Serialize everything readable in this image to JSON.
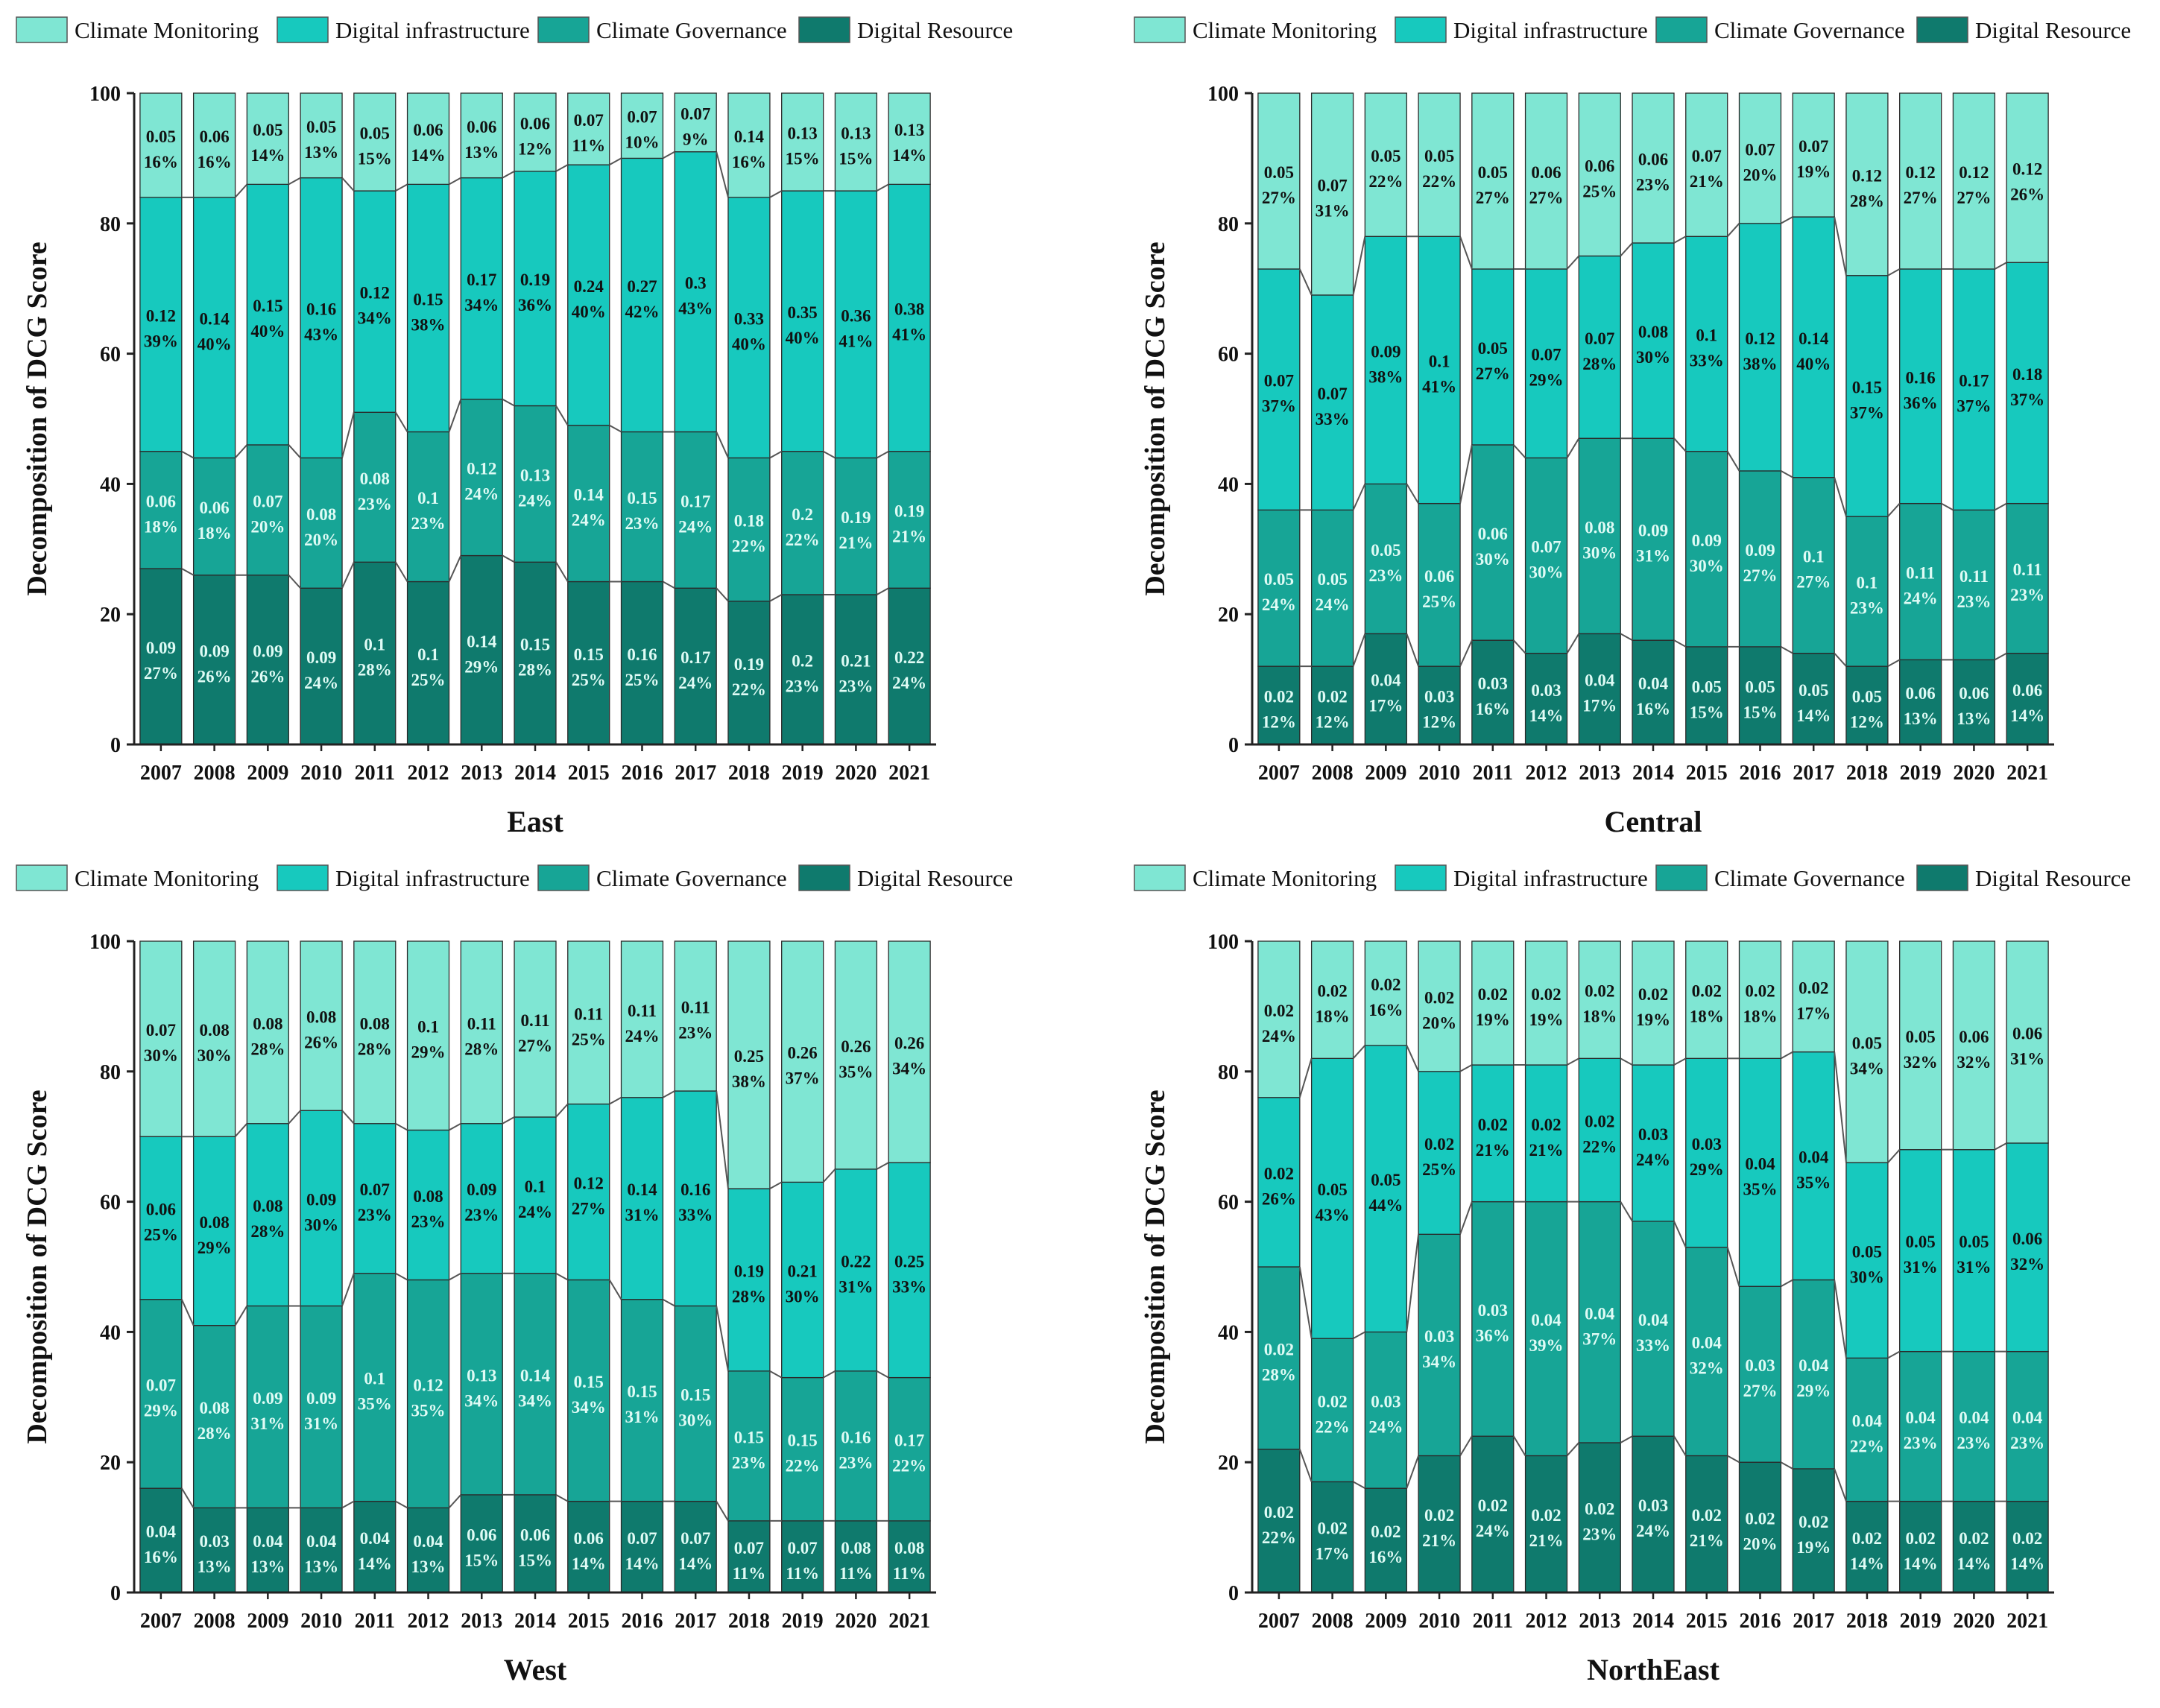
{
  "colors": {
    "climate_monitoring": "#7fe6d3",
    "digital_infrastructure": "#17c9be",
    "climate_governance": "#17a596",
    "digital_resource": "#0f7a6d",
    "axis": "#222222",
    "label_dark": "#111111",
    "label_light": "#dffbf5"
  },
  "chart_data": [
    {
      "type": "bar",
      "title": "East",
      "ylabel": "Decomposition of DCG Score",
      "ylim": [
        0,
        100
      ],
      "yticks": [
        0,
        20,
        40,
        60,
        80,
        100
      ],
      "categories": [
        "2007",
        "2008",
        "2009",
        "2010",
        "2011",
        "2012",
        "2013",
        "2014",
        "2015",
        "2016",
        "2017",
        "2018",
        "2019",
        "2020",
        "2021"
      ],
      "legend": [
        "Climate Monitoring",
        "Digital infrastructure",
        "Climate Governance",
        "Digital Resource"
      ],
      "series": [
        {
          "name": "Digital Resource",
          "pct": [
            27,
            26,
            26,
            24,
            28,
            25,
            29,
            28,
            25,
            25,
            24,
            22,
            23,
            23,
            24
          ],
          "scores": [
            "0.09",
            "0.09",
            "0.09",
            "0.09",
            "0.1",
            "0.1",
            "0.14",
            "0.15",
            "0.15",
            "0.16",
            "0.17",
            "0.19",
            "0.2",
            "0.21",
            "0.22"
          ]
        },
        {
          "name": "Climate Governance",
          "pct": [
            18,
            18,
            20,
            20,
            23,
            23,
            24,
            24,
            24,
            23,
            24,
            22,
            22,
            21,
            21
          ],
          "scores": [
            "0.06",
            "0.06",
            "0.07",
            "0.08",
            "0.08",
            "0.1",
            "0.12",
            "0.13",
            "0.14",
            "0.15",
            "0.17",
            "0.18",
            "0.2",
            "0.19",
            "0.19"
          ]
        },
        {
          "name": "Digital infrastructure",
          "pct": [
            39,
            40,
            40,
            43,
            34,
            38,
            34,
            36,
            40,
            42,
            43,
            40,
            40,
            41,
            41
          ],
          "scores": [
            "0.12",
            "0.14",
            "0.15",
            "0.16",
            "0.12",
            "0.15",
            "0.17",
            "0.19",
            "0.24",
            "0.27",
            "0.3",
            "0.33",
            "0.35",
            "0.36",
            "0.38"
          ]
        },
        {
          "name": "Climate Monitoring",
          "pct": [
            16,
            16,
            14,
            13,
            15,
            14,
            13,
            12,
            11,
            10,
            9,
            16,
            15,
            15,
            14
          ],
          "scores": [
            "0.05",
            "0.06",
            "0.05",
            "0.05",
            "0.05",
            "0.06",
            "0.06",
            "0.06",
            "0.07",
            "0.07",
            "0.07",
            "0.14",
            "0.13",
            "0.13",
            "0.13"
          ]
        }
      ]
    },
    {
      "type": "bar",
      "title": "Central",
      "ylabel": "Decomposition of DCG Score",
      "ylim": [
        0,
        100
      ],
      "yticks": [
        0,
        20,
        40,
        60,
        80,
        100
      ],
      "categories": [
        "2007",
        "2008",
        "2009",
        "2010",
        "2011",
        "2012",
        "2013",
        "2014",
        "2015",
        "2016",
        "2017",
        "2018",
        "2019",
        "2020",
        "2021"
      ],
      "legend": [
        "Climate Monitoring",
        "Digital infrastructure",
        "Climate Governance",
        "Digital Resource"
      ],
      "series": [
        {
          "name": "Digital Resource",
          "pct": [
            12,
            12,
            17,
            12,
            16,
            14,
            17,
            16,
            15,
            15,
            14,
            12,
            13,
            13,
            14
          ],
          "scores": [
            "0.02",
            "0.02",
            "0.04",
            "0.03",
            "0.03",
            "0.03",
            "0.04",
            "0.04",
            "0.05",
            "0.05",
            "0.05",
            "0.05",
            "0.06",
            "0.06",
            "0.06"
          ]
        },
        {
          "name": "Climate Governance",
          "pct": [
            24,
            24,
            23,
            25,
            30,
            30,
            30,
            31,
            30,
            27,
            27,
            23,
            24,
            23,
            23
          ],
          "scores": [
            "0.05",
            "0.05",
            "0.05",
            "0.06",
            "0.06",
            "0.07",
            "0.08",
            "0.09",
            "0.09",
            "0.09",
            "0.1",
            "0.1",
            "0.11",
            "0.11",
            "0.11"
          ]
        },
        {
          "name": "Digital infrastructure",
          "pct": [
            37,
            33,
            38,
            41,
            27,
            29,
            28,
            30,
            33,
            38,
            40,
            37,
            36,
            37,
            37
          ],
          "scores": [
            "0.07",
            "0.07",
            "0.09",
            "0.1",
            "0.05",
            "0.07",
            "0.07",
            "0.08",
            "0.1",
            "0.12",
            "0.14",
            "0.15",
            "0.16",
            "0.17",
            "0.18"
          ]
        },
        {
          "name": "Climate Monitoring",
          "pct": [
            27,
            31,
            22,
            22,
            27,
            27,
            25,
            23,
            21,
            20,
            19,
            28,
            27,
            27,
            26
          ],
          "scores": [
            "0.05",
            "0.07",
            "0.05",
            "0.05",
            "0.05",
            "0.06",
            "0.06",
            "0.06",
            "0.07",
            "0.07",
            "0.07",
            "0.12",
            "0.12",
            "0.12",
            "0.12"
          ]
        }
      ]
    },
    {
      "type": "bar",
      "title": "West",
      "ylabel": "Decomposition of DCG Score",
      "ylim": [
        0,
        100
      ],
      "yticks": [
        0,
        20,
        40,
        60,
        80,
        100
      ],
      "categories": [
        "2007",
        "2008",
        "2009",
        "2010",
        "2011",
        "2012",
        "2013",
        "2014",
        "2015",
        "2016",
        "2017",
        "2018",
        "2019",
        "2020",
        "2021"
      ],
      "legend": [
        "Climate Monitoring",
        "Digital infrastructure",
        "Climate Governance",
        "Digital Resource"
      ],
      "series": [
        {
          "name": "Digital Resource",
          "pct": [
            16,
            13,
            13,
            13,
            14,
            13,
            15,
            15,
            14,
            14,
            14,
            11,
            11,
            11,
            11
          ],
          "scores": [
            "0.04",
            "0.03",
            "0.04",
            "0.04",
            "0.04",
            "0.04",
            "0.06",
            "0.06",
            "0.06",
            "0.07",
            "0.07",
            "0.07",
            "0.07",
            "0.08",
            "0.08"
          ]
        },
        {
          "name": "Climate Governance",
          "pct": [
            29,
            28,
            31,
            31,
            35,
            35,
            34,
            34,
            34,
            31,
            30,
            23,
            22,
            23,
            22
          ],
          "scores": [
            "0.07",
            "0.08",
            "0.09",
            "0.09",
            "0.1",
            "0.12",
            "0.13",
            "0.14",
            "0.15",
            "0.15",
            "0.15",
            "0.15",
            "0.15",
            "0.16",
            "0.17"
          ]
        },
        {
          "name": "Digital infrastructure",
          "pct": [
            25,
            29,
            28,
            30,
            23,
            23,
            23,
            24,
            27,
            31,
            33,
            28,
            30,
            31,
            33
          ],
          "scores": [
            "0.06",
            "0.08",
            "0.08",
            "0.09",
            "0.07",
            "0.08",
            "0.09",
            "0.1",
            "0.12",
            "0.14",
            "0.16",
            "0.19",
            "0.21",
            "0.22",
            "0.25"
          ]
        },
        {
          "name": "Climate Monitoring",
          "pct": [
            30,
            30,
            28,
            26,
            28,
            29,
            28,
            27,
            25,
            24,
            23,
            38,
            37,
            35,
            34
          ],
          "scores": [
            "0.07",
            "0.08",
            "0.08",
            "0.08",
            "0.08",
            "0.1",
            "0.11",
            "0.11",
            "0.11",
            "0.11",
            "0.11",
            "0.25",
            "0.26",
            "0.26",
            "0.26"
          ]
        }
      ]
    },
    {
      "type": "bar",
      "title": "NorthEast",
      "ylabel": "Decomposition of DCG Score",
      "ylim": [
        0,
        100
      ],
      "yticks": [
        0,
        20,
        40,
        60,
        80,
        100
      ],
      "categories": [
        "2007",
        "2008",
        "2009",
        "2010",
        "2011",
        "2012",
        "2013",
        "2014",
        "2015",
        "2016",
        "2017",
        "2018",
        "2019",
        "2020",
        "2021"
      ],
      "legend": [
        "Climate Monitoring",
        "Digital infrastructure",
        "Climate Governance",
        "Digital Resource"
      ],
      "series": [
        {
          "name": "Digital Resource",
          "pct": [
            22,
            17,
            16,
            21,
            24,
            21,
            23,
            24,
            21,
            20,
            19,
            14,
            14,
            14,
            14
          ],
          "scores": [
            "0.02",
            "0.02",
            "0.02",
            "0.02",
            "0.02",
            "0.02",
            "0.02",
            "0.03",
            "0.02",
            "0.02",
            "0.02",
            "0.02",
            "0.02",
            "0.02",
            "0.02"
          ]
        },
        {
          "name": "Climate Governance",
          "pct": [
            28,
            22,
            24,
            34,
            36,
            39,
            37,
            33,
            32,
            27,
            29,
            22,
            23,
            23,
            23
          ],
          "scores": [
            "0.02",
            "0.02",
            "0.03",
            "0.03",
            "0.03",
            "0.04",
            "0.04",
            "0.04",
            "0.04",
            "0.03",
            "0.04",
            "0.04",
            "0.04",
            "0.04",
            "0.04"
          ]
        },
        {
          "name": "Digital infrastructure",
          "pct": [
            26,
            43,
            44,
            25,
            21,
            21,
            22,
            24,
            29,
            35,
            35,
            30,
            31,
            31,
            32
          ],
          "scores": [
            "0.02",
            "0.05",
            "0.05",
            "0.02",
            "0.02",
            "0.02",
            "0.02",
            "0.03",
            "0.03",
            "0.04",
            "0.04",
            "0.05",
            "0.05",
            "0.05",
            "0.06"
          ]
        },
        {
          "name": "Climate Monitoring",
          "pct": [
            24,
            18,
            16,
            20,
            19,
            19,
            18,
            19,
            18,
            18,
            17,
            34,
            32,
            32,
            31
          ],
          "scores": [
            "0.02",
            "0.02",
            "0.02",
            "0.02",
            "0.02",
            "0.02",
            "0.02",
            "0.02",
            "0.02",
            "0.02",
            "0.02",
            "0.05",
            "0.05",
            "0.06",
            "0.06"
          ]
        }
      ]
    }
  ]
}
